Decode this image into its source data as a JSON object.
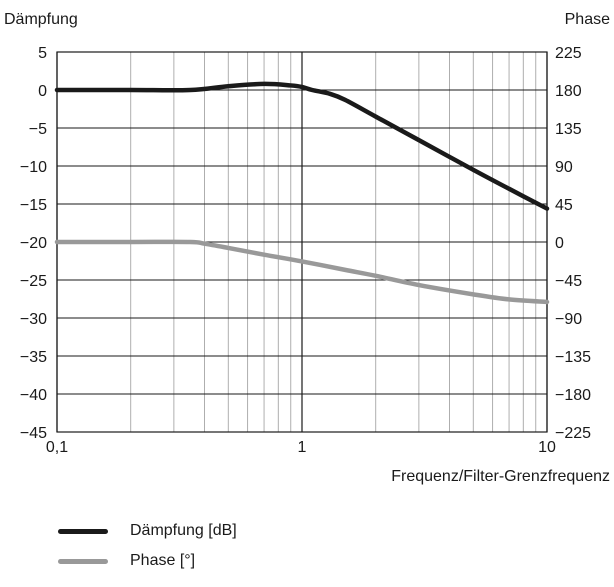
{
  "chart_data": {
    "type": "line",
    "title": "",
    "ylabel_left": "Dämpfung",
    "ylabel_right": "Phase",
    "xlabel": "Frequenz/Filter-Grenzfrequenz",
    "x_scale": "log",
    "xlim": [
      0.1,
      10
    ],
    "x_ticks": [
      0.1,
      1,
      10
    ],
    "x_tick_labels": [
      "0,1",
      "1",
      "10"
    ],
    "ylim_left": [
      -45,
      5
    ],
    "y_ticks_left": [
      5,
      0,
      -5,
      -10,
      -15,
      -20,
      -25,
      -30,
      -35,
      -40,
      -45
    ],
    "y_tick_labels_left": [
      "5",
      "0",
      "−5",
      "−10",
      "−15",
      "−20",
      "−25",
      "−30",
      "−35",
      "−40",
      "−45"
    ],
    "ylim_right": [
      -225,
      225
    ],
    "y_ticks_right": [
      225,
      180,
      135,
      90,
      45,
      0,
      -45,
      -90,
      -135,
      -180,
      -225
    ],
    "y_tick_labels_right": [
      "225",
      "180",
      "135",
      "90",
      "45",
      "0",
      "−45",
      "−90",
      "−135",
      "−180",
      "−225"
    ],
    "grid": true,
    "legend_position": "bottom-left",
    "series": [
      {
        "name": "Dämpfung [dB]",
        "axis": "left",
        "color": "#1a1a1a",
        "x": [
          0.1,
          0.2,
          0.35,
          0.5,
          0.7,
          0.9,
          1.0,
          1.1,
          1.3,
          1.5,
          2.0,
          3.0,
          5.0,
          7.0,
          10.0
        ],
        "y": [
          0,
          0,
          0,
          0.5,
          0.8,
          0.6,
          0.4,
          0.0,
          -0.5,
          -1.3,
          -3.5,
          -6.6,
          -10.5,
          -13.0,
          -15.6
        ]
      },
      {
        "name": "Phase [°]",
        "axis": "right",
        "color": "#999999",
        "x": [
          0.1,
          0.2,
          0.35,
          0.4,
          0.5,
          0.7,
          1.0,
          1.5,
          2.0,
          3.0,
          5.0,
          7.0,
          10.0
        ],
        "y": [
          0,
          0,
          0,
          -2,
          -7,
          -15,
          -23,
          -33,
          -40,
          -51,
          -62,
          -68,
          -71
        ]
      }
    ]
  }
}
